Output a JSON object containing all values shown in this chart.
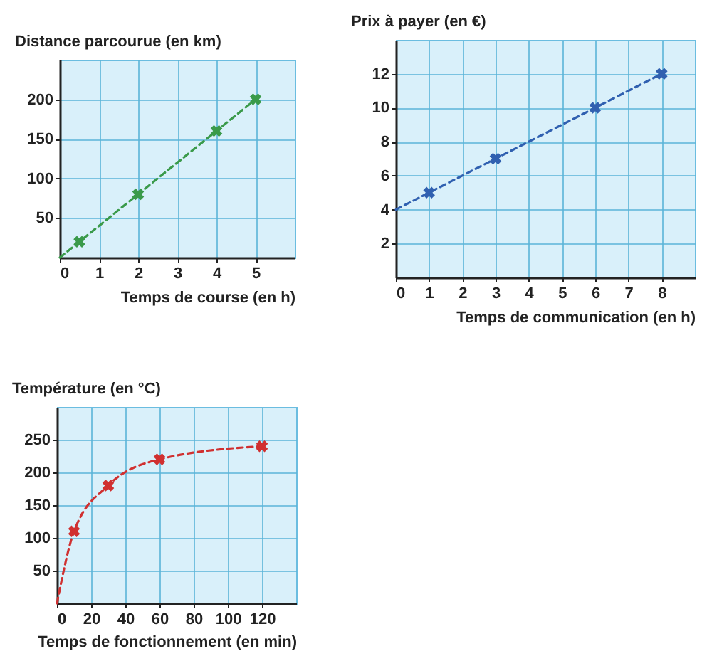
{
  "chart_data": [
    {
      "type": "line",
      "xlabel": "Temps de course (en h)",
      "ylabel": "Distance parcourue (en km)",
      "xlim": [
        0,
        6
      ],
      "ylim": [
        0,
        250
      ],
      "xticks": [
        0,
        1,
        2,
        3,
        4,
        5
      ],
      "yticks": [
        50,
        100,
        150,
        200
      ],
      "grid": true,
      "series": [
        {
          "type": "line",
          "color": "#3a9a4a",
          "line_style": "dashed",
          "marker": "none",
          "x": [
            0,
            5
          ],
          "values": [
            0,
            200
          ]
        },
        {
          "type": "scatter",
          "color": "#3a9a4a",
          "marker": "cross",
          "x": [
            0.5,
            2,
            4,
            5
          ],
          "values": [
            20,
            80,
            160,
            200
          ]
        }
      ]
    },
    {
      "type": "line",
      "xlabel": "Temps de communication (en h)",
      "ylabel": "Prix à payer (en €)",
      "xlim": [
        0,
        9
      ],
      "ylim": [
        0,
        14
      ],
      "xticks": [
        0,
        1,
        2,
        3,
        4,
        5,
        6,
        7,
        8
      ],
      "yticks": [
        2,
        4,
        6,
        8,
        10,
        12
      ],
      "grid": true,
      "series": [
        {
          "type": "line",
          "color": "#3060b0",
          "line_style": "dashed",
          "marker": "none",
          "x": [
            0,
            8
          ],
          "values": [
            4,
            12
          ]
        },
        {
          "type": "scatter",
          "color": "#3060b0",
          "marker": "cross",
          "x": [
            1,
            3,
            6,
            8
          ],
          "values": [
            5,
            7,
            10,
            12
          ]
        }
      ]
    },
    {
      "type": "line",
      "xlabel": "Temps de fonctionnement (en min)",
      "ylabel": "Température (en °C)",
      "xlim": [
        0,
        140
      ],
      "ylim": [
        0,
        300
      ],
      "xticks": [
        0,
        20,
        40,
        60,
        80,
        100,
        120
      ],
      "yticks": [
        50,
        100,
        150,
        200,
        250
      ],
      "grid": true,
      "series": [
        {
          "type": "line",
          "color": "#d03030",
          "line_style": "dashed",
          "marker": "none",
          "x": [
            0,
            10,
            30,
            60,
            120
          ],
          "values": [
            0,
            110,
            180,
            220,
            240
          ]
        },
        {
          "type": "scatter",
          "color": "#d03030",
          "marker": "cross",
          "x": [
            10,
            30,
            60,
            120
          ],
          "values": [
            110,
            180,
            220,
            240
          ]
        }
      ]
    }
  ]
}
